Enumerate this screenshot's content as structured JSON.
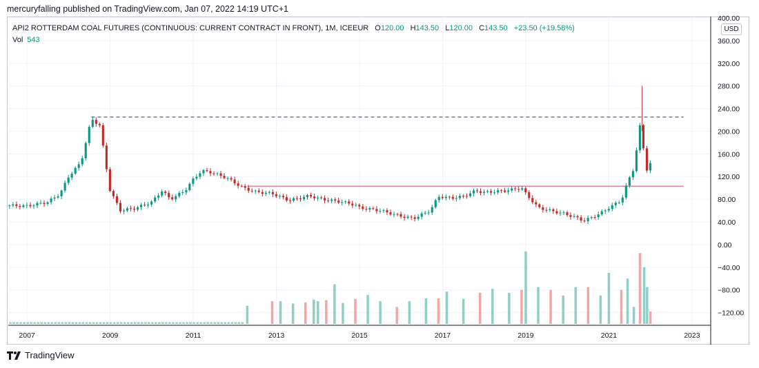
{
  "header": {
    "publish_line": "mercuryfalling published on TradingView.com, Jan 07, 2022 14:19 UTC+1"
  },
  "legend": {
    "symbol": "API2 ROTTERDAM COAL FUTURES (CONTINUOUS: CURRENT CONTRACT IN FRONT), 1M, ICEEUR",
    "open_label": "O",
    "open": "120.00",
    "high_label": "H",
    "high": "143.50",
    "low_label": "L",
    "low": "120.00",
    "close_label": "C",
    "close": "143.50",
    "change": "+23.50 (+19.58%)",
    "vol_label": "Vol",
    "vol_value": "543"
  },
  "currency_badge": "USD",
  "footer": {
    "brand": "TradingView"
  },
  "colors": {
    "up": "#089981",
    "down": "#c62828",
    "vol_up": "#8fcfc4",
    "vol_down": "#f3a6a6",
    "resistance": "#1f3a6b",
    "support": "#e05a7e"
  },
  "chart_data": {
    "type": "candlestick",
    "interval": "1M",
    "y_range": [
      -140,
      400
    ],
    "y_ticks": [
      "400.00",
      "360.00",
      "320.00",
      "280.00",
      "240.00",
      "200.00",
      "160.00",
      "120.00",
      "80.00",
      "40.00",
      "0.00",
      "−40.00",
      "−80.00",
      "−120.00"
    ],
    "y_tick_values": [
      400,
      360,
      320,
      280,
      240,
      200,
      160,
      120,
      80,
      40,
      0,
      -40,
      -80,
      -120
    ],
    "x_ticks": [
      "2007",
      "2009",
      "2011",
      "2013",
      "2015",
      "2017",
      "2019",
      "2021",
      "2023"
    ],
    "x_tick_years": [
      2007,
      2009,
      2011,
      2013,
      2015,
      2017,
      2019,
      2021,
      2023
    ],
    "x_range_years": [
      2006.55,
      2023.45
    ],
    "close_series": {
      "start_year": 2006.58,
      "step_months": 1,
      "anchors": [
        [
          2006.58,
          69
        ],
        [
          2007.0,
          68
        ],
        [
          2007.5,
          75
        ],
        [
          2007.8,
          90
        ],
        [
          2008.0,
          120
        ],
        [
          2008.3,
          145
        ],
        [
          2008.55,
          222
        ],
        [
          2008.75,
          210
        ],
        [
          2008.9,
          140
        ],
        [
          2009.0,
          95
        ],
        [
          2009.25,
          60
        ],
        [
          2009.6,
          64
        ],
        [
          2010.0,
          75
        ],
        [
          2010.25,
          95
        ],
        [
          2010.45,
          80
        ],
        [
          2010.8,
          95
        ],
        [
          2011.0,
          115
        ],
        [
          2011.2,
          130
        ],
        [
          2011.4,
          128
        ],
        [
          2011.8,
          118
        ],
        [
          2012.2,
          100
        ],
        [
          2012.5,
          93
        ],
        [
          2012.9,
          90
        ],
        [
          2013.3,
          78
        ],
        [
          2013.8,
          86
        ],
        [
          2014.1,
          80
        ],
        [
          2014.6,
          75
        ],
        [
          2014.9,
          70
        ],
        [
          2015.0,
          65
        ],
        [
          2015.5,
          60
        ],
        [
          2016.0,
          50
        ],
        [
          2016.3,
          46
        ],
        [
          2016.7,
          60
        ],
        [
          2016.9,
          85
        ],
        [
          2017.2,
          82
        ],
        [
          2017.5,
          85
        ],
        [
          2017.8,
          95
        ],
        [
          2018.0,
          92
        ],
        [
          2018.5,
          95
        ],
        [
          2018.9,
          100
        ],
        [
          2019.0,
          90
        ],
        [
          2019.3,
          65
        ],
        [
          2019.7,
          58
        ],
        [
          2019.9,
          55
        ],
        [
          2020.2,
          48
        ],
        [
          2020.4,
          42
        ],
        [
          2020.8,
          55
        ],
        [
          2021.0,
          65
        ],
        [
          2021.3,
          78
        ],
        [
          2021.45,
          110
        ],
        [
          2021.6,
          135
        ],
        [
          2021.75,
          210
        ],
        [
          2021.85,
          160
        ],
        [
          2021.92,
          130
        ],
        [
          2022.0,
          143.5
        ]
      ]
    },
    "volume_series": {
      "bars": [
        [
          2012.3,
          -108
        ],
        [
          2012.9,
          -100
        ],
        [
          2013.1,
          -100
        ],
        [
          2013.4,
          -104
        ],
        [
          2013.7,
          -102
        ],
        [
          2013.9,
          -97
        ],
        [
          2014.0,
          -100
        ],
        [
          2014.2,
          -98
        ],
        [
          2014.4,
          -70
        ],
        [
          2014.6,
          -103
        ],
        [
          2014.9,
          -96
        ],
        [
          2015.2,
          -89
        ],
        [
          2015.5,
          -100
        ],
        [
          2015.9,
          -110
        ],
        [
          2016.2,
          -100
        ],
        [
          2016.6,
          -95
        ],
        [
          2016.9,
          -95
        ],
        [
          2017.1,
          -83
        ],
        [
          2017.5,
          -96
        ],
        [
          2017.9,
          -85
        ],
        [
          2018.2,
          -78
        ],
        [
          2018.6,
          -85
        ],
        [
          2018.9,
          -80
        ],
        [
          2019.0,
          -12
        ],
        [
          2019.3,
          -75
        ],
        [
          2019.6,
          -80
        ],
        [
          2019.9,
          -90
        ],
        [
          2020.2,
          -75
        ],
        [
          2020.5,
          -75
        ],
        [
          2020.8,
          -90
        ],
        [
          2021.0,
          -50
        ],
        [
          2021.3,
          -80
        ],
        [
          2021.45,
          -60
        ],
        [
          2021.6,
          -110
        ],
        [
          2021.75,
          -15
        ],
        [
          2021.85,
          -40
        ],
        [
          2021.92,
          -75
        ],
        [
          2022.0,
          -118
        ]
      ]
    },
    "resistance_level": 225,
    "support_level": 103,
    "last_price": "143.50"
  }
}
